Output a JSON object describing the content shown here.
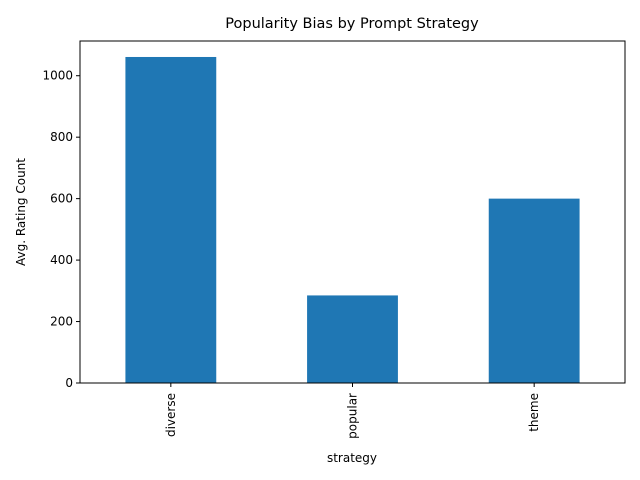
{
  "chart_data": {
    "type": "bar",
    "title": "Popularity Bias by Prompt Strategy",
    "xlabel": "strategy",
    "ylabel": "Avg. Rating Count",
    "categories": [
      "diverse",
      "popular",
      "theme"
    ],
    "values": [
      1061,
      285,
      600
    ],
    "ylim": [
      0,
      1113
    ],
    "yticks": [
      0,
      200,
      400,
      600,
      800,
      1000
    ],
    "grid": false,
    "legend": "none",
    "bar_color": "#1f77b4"
  }
}
